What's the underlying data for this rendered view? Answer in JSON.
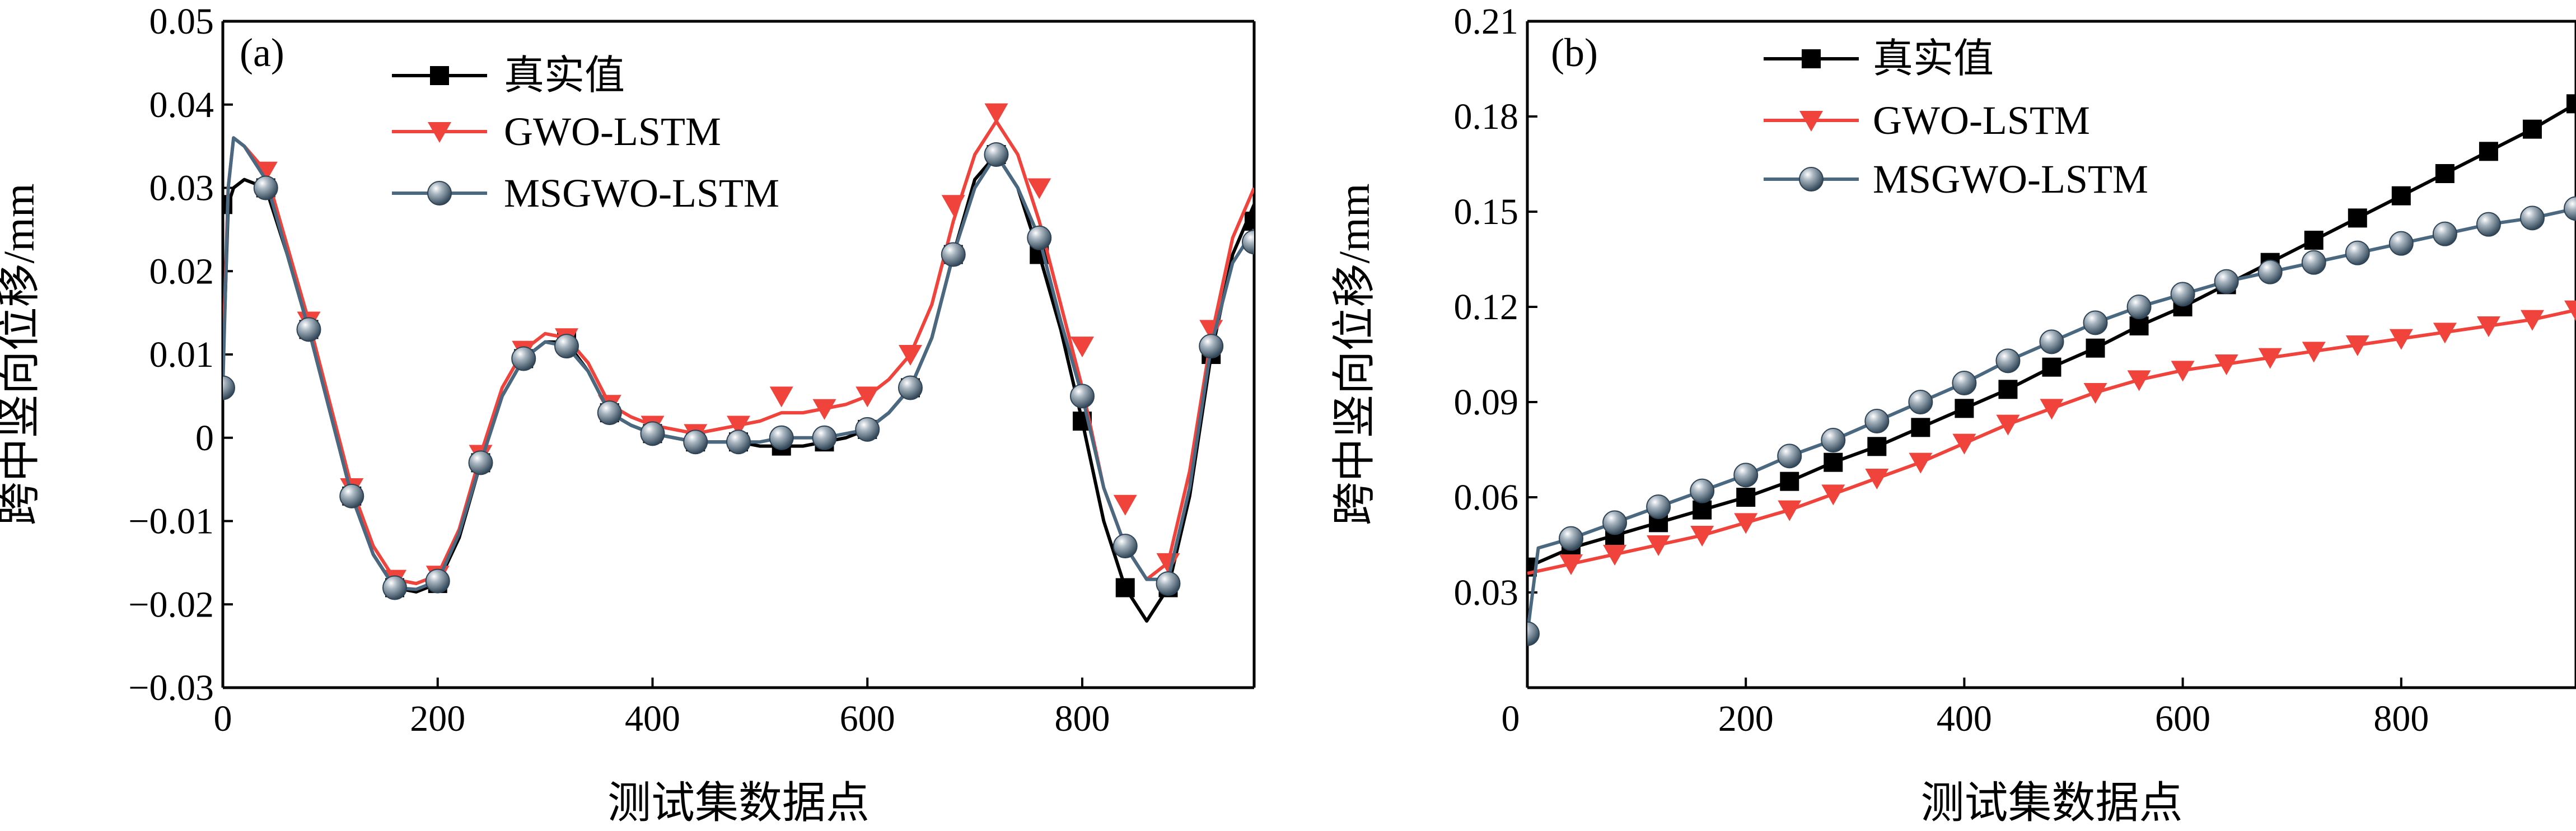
{
  "chart_data": [
    {
      "type": "line",
      "panel_label": "(a)",
      "xlabel": "测试集数据点",
      "ylabel": "跨中竖向位移/mm",
      "xlim": [
        0,
        960
      ],
      "ylim": [
        -0.03,
        0.05
      ],
      "xticks": [
        0,
        200,
        400,
        600,
        800
      ],
      "xtick_labels": [
        "0",
        "200",
        "400",
        "600",
        "800"
      ],
      "yticks": [
        -0.03,
        -0.02,
        -0.01,
        0,
        0.01,
        0.02,
        0.03,
        0.04,
        0.05
      ],
      "ytick_labels": [
        "−0.03",
        "−0.02",
        "−0.01",
        "0",
        "0.01",
        "0.02",
        "0.03",
        "0.04",
        "0.05"
      ],
      "legend_position": "top-center",
      "series": [
        {
          "name": "真实值",
          "color": "#000000",
          "marker": "square",
          "x": [
            0,
            5,
            10,
            20,
            40,
            60,
            80,
            100,
            120,
            140,
            160,
            180,
            200,
            220,
            240,
            260,
            280,
            300,
            320,
            340,
            360,
            380,
            400,
            420,
            440,
            460,
            480,
            500,
            520,
            540,
            560,
            580,
            600,
            620,
            640,
            660,
            680,
            700,
            720,
            740,
            760,
            780,
            800,
            820,
            840,
            860,
            880,
            900,
            920,
            940,
            960
          ],
          "y": [
            0.008,
            0.028,
            0.03,
            0.031,
            0.03,
            0.022,
            0.013,
            0.003,
            -0.007,
            -0.014,
            -0.018,
            -0.0185,
            -0.0175,
            -0.012,
            -0.003,
            0.005,
            0.0095,
            0.0115,
            0.0115,
            0.008,
            0.003,
            0.0015,
            0.0005,
            0.0,
            -0.0005,
            -0.0005,
            -0.0005,
            -0.001,
            -0.001,
            -0.001,
            -0.0005,
            0.0,
            0.001,
            0.003,
            0.006,
            0.012,
            0.022,
            0.031,
            0.034,
            0.03,
            0.022,
            0.013,
            0.002,
            -0.01,
            -0.018,
            -0.022,
            -0.018,
            -0.007,
            0.01,
            0.022,
            0.028
          ],
          "marker_x": [
            0,
            40,
            80,
            120,
            160,
            200,
            240,
            280,
            320,
            360,
            400,
            440,
            480,
            520,
            560,
            600,
            640,
            680,
            720,
            760,
            800,
            840,
            880,
            920,
            960
          ],
          "marker_y": [
            0.028,
            0.03,
            0.013,
            -0.007,
            -0.018,
            -0.0175,
            -0.003,
            0.0095,
            0.0115,
            0.003,
            0.0005,
            -0.0005,
            -0.0005,
            -0.001,
            -0.0005,
            0.001,
            0.006,
            0.022,
            0.034,
            0.022,
            0.002,
            -0.018,
            -0.018,
            0.01,
            0.026
          ]
        },
        {
          "name": "GWO-LSTM",
          "color": "#f0433c",
          "marker": "triangle-down",
          "x": [
            0,
            5,
            10,
            20,
            40,
            60,
            80,
            100,
            120,
            140,
            160,
            180,
            200,
            220,
            240,
            260,
            280,
            300,
            320,
            340,
            360,
            380,
            400,
            420,
            440,
            460,
            480,
            500,
            520,
            540,
            560,
            580,
            600,
            620,
            640,
            660,
            680,
            700,
            720,
            740,
            760,
            780,
            800,
            820,
            840,
            860,
            880,
            900,
            920,
            940,
            960
          ],
          "y": [
            0.009,
            0.03,
            0.036,
            0.035,
            0.032,
            0.023,
            0.014,
            0.004,
            -0.006,
            -0.013,
            -0.017,
            -0.0175,
            -0.0165,
            -0.011,
            -0.002,
            0.006,
            0.0105,
            0.0125,
            0.012,
            0.009,
            0.004,
            0.0025,
            0.0015,
            0.001,
            0.0005,
            0.001,
            0.0015,
            0.002,
            0.003,
            0.003,
            0.0035,
            0.004,
            0.005,
            0.007,
            0.01,
            0.016,
            0.026,
            0.034,
            0.038,
            0.034,
            0.026,
            0.016,
            0.006,
            -0.006,
            -0.013,
            -0.017,
            -0.015,
            -0.004,
            0.012,
            0.024,
            0.03
          ],
          "marker_x": [
            40,
            80,
            120,
            160,
            200,
            240,
            280,
            320,
            360,
            400,
            440,
            480,
            520,
            560,
            600,
            640,
            680,
            720,
            760,
            800,
            840,
            880,
            920
          ],
          "marker_y": [
            0.032,
            0.014,
            -0.006,
            -0.017,
            -0.0165,
            -0.002,
            0.0105,
            0.012,
            0.004,
            0.0015,
            0.0005,
            0.0015,
            0.005,
            0.0035,
            0.005,
            0.01,
            0.028,
            0.039,
            0.03,
            0.011,
            -0.008,
            -0.015,
            0.013
          ]
        },
        {
          "name": "MSGWO-LSTM",
          "color": "#4a6880",
          "marker": "sphere",
          "x": [
            0,
            5,
            10,
            20,
            40,
            60,
            80,
            100,
            120,
            140,
            160,
            180,
            200,
            220,
            240,
            260,
            280,
            300,
            320,
            340,
            360,
            380,
            400,
            420,
            440,
            460,
            480,
            500,
            520,
            540,
            560,
            580,
            600,
            620,
            640,
            660,
            680,
            700,
            720,
            740,
            760,
            780,
            800,
            820,
            840,
            860,
            880,
            900,
            920,
            940,
            960
          ],
          "y": [
            0.006,
            0.03,
            0.036,
            0.035,
            0.031,
            0.022,
            0.013,
            0.003,
            -0.007,
            -0.014,
            -0.018,
            -0.0182,
            -0.0172,
            -0.0115,
            -0.003,
            0.005,
            0.0095,
            0.0115,
            0.011,
            0.008,
            0.003,
            0.0015,
            0.0005,
            0.0,
            -0.0005,
            -0.0005,
            -0.0005,
            -0.0005,
            0.0,
            0.0,
            0.0,
            0.0005,
            0.001,
            0.003,
            0.006,
            0.012,
            0.022,
            0.03,
            0.034,
            0.03,
            0.024,
            0.014,
            0.005,
            -0.006,
            -0.013,
            -0.017,
            -0.017,
            -0.006,
            0.011,
            0.021,
            0.025
          ],
          "marker_x": [
            0,
            40,
            80,
            120,
            160,
            200,
            240,
            280,
            320,
            360,
            400,
            440,
            480,
            520,
            560,
            600,
            640,
            680,
            720,
            760,
            800,
            840,
            880,
            920,
            960
          ],
          "marker_y": [
            0.006,
            0.03,
            0.013,
            -0.007,
            -0.018,
            -0.0172,
            -0.003,
            0.0095,
            0.011,
            0.003,
            0.0005,
            -0.0005,
            -0.0005,
            0.0,
            0.0,
            0.001,
            0.006,
            0.022,
            0.034,
            0.024,
            0.005,
            -0.013,
            -0.0175,
            0.011,
            0.0235
          ]
        }
      ]
    },
    {
      "type": "line",
      "panel_label": "(b)",
      "xlabel": "测试集数据点",
      "ylabel": "跨中竖向位移/mm",
      "xlim": [
        0,
        960
      ],
      "ylim": [
        0,
        0.21
      ],
      "xticks": [
        200,
        400,
        600,
        800
      ],
      "xtick_labels": [
        "200",
        "400",
        "600",
        "800"
      ],
      "yticks": [
        0.03,
        0.06,
        0.09,
        0.12,
        0.15,
        0.18,
        0.21
      ],
      "ytick_labels": [
        "0.03",
        "0.06",
        "0.09",
        "0.12",
        "0.15",
        "0.18",
        "0.21"
      ],
      "origin_label": "0",
      "legend_position": "top-center",
      "series": [
        {
          "name": "真实值",
          "color": "#000000",
          "marker": "square",
          "x": [
            0,
            40,
            80,
            120,
            160,
            200,
            240,
            280,
            320,
            360,
            400,
            440,
            480,
            520,
            560,
            600,
            640,
            680,
            720,
            760,
            800,
            840,
            880,
            920,
            960
          ],
          "y": [
            0.038,
            0.044,
            0.048,
            0.052,
            0.056,
            0.06,
            0.065,
            0.071,
            0.076,
            0.082,
            0.088,
            0.094,
            0.101,
            0.107,
            0.114,
            0.12,
            0.127,
            0.134,
            0.141,
            0.148,
            0.155,
            0.162,
            0.169,
            0.176,
            0.184
          ],
          "marker_x": [
            0,
            40,
            80,
            120,
            160,
            200,
            240,
            280,
            320,
            360,
            400,
            440,
            480,
            520,
            560,
            600,
            640,
            680,
            720,
            760,
            800,
            840,
            880,
            920,
            960
          ],
          "marker_y": [
            0.038,
            0.044,
            0.048,
            0.052,
            0.056,
            0.06,
            0.065,
            0.071,
            0.076,
            0.082,
            0.088,
            0.094,
            0.101,
            0.107,
            0.114,
            0.12,
            0.127,
            0.134,
            0.141,
            0.148,
            0.155,
            0.162,
            0.169,
            0.176,
            0.184
          ]
        },
        {
          "name": "GWO-LSTM",
          "color": "#f0433c",
          "marker": "triangle-down",
          "x": [
            0,
            40,
            80,
            120,
            160,
            200,
            240,
            280,
            320,
            360,
            400,
            440,
            480,
            520,
            560,
            600,
            640,
            680,
            720,
            760,
            800,
            840,
            880,
            920,
            960
          ],
          "y": [
            0.036,
            0.039,
            0.042,
            0.045,
            0.048,
            0.052,
            0.056,
            0.061,
            0.066,
            0.071,
            0.077,
            0.083,
            0.088,
            0.093,
            0.097,
            0.1,
            0.102,
            0.104,
            0.106,
            0.108,
            0.11,
            0.112,
            0.114,
            0.116,
            0.119
          ],
          "marker_x": [
            40,
            80,
            120,
            160,
            200,
            240,
            280,
            320,
            360,
            400,
            440,
            480,
            520,
            560,
            600,
            640,
            680,
            720,
            760,
            800,
            840,
            880,
            920,
            960
          ],
          "marker_y": [
            0.039,
            0.042,
            0.045,
            0.048,
            0.052,
            0.056,
            0.061,
            0.066,
            0.071,
            0.077,
            0.083,
            0.088,
            0.093,
            0.097,
            0.1,
            0.102,
            0.104,
            0.106,
            0.108,
            0.11,
            0.112,
            0.114,
            0.116,
            0.119
          ]
        },
        {
          "name": "MSGWO-LSTM",
          "color": "#4a6880",
          "marker": "sphere",
          "x": [
            0,
            10,
            40,
            80,
            120,
            160,
            200,
            240,
            280,
            320,
            360,
            400,
            440,
            480,
            520,
            560,
            600,
            640,
            680,
            720,
            760,
            800,
            840,
            880,
            920,
            960
          ],
          "y": [
            0.017,
            0.044,
            0.047,
            0.052,
            0.057,
            0.062,
            0.067,
            0.073,
            0.078,
            0.084,
            0.09,
            0.096,
            0.103,
            0.109,
            0.115,
            0.12,
            0.124,
            0.128,
            0.131,
            0.134,
            0.137,
            0.14,
            0.143,
            0.146,
            0.148,
            0.151
          ],
          "marker_x": [
            0,
            40,
            80,
            120,
            160,
            200,
            240,
            280,
            320,
            360,
            400,
            440,
            480,
            520,
            560,
            600,
            640,
            680,
            720,
            760,
            800,
            840,
            880,
            920,
            960
          ],
          "marker_y": [
            0.017,
            0.047,
            0.052,
            0.057,
            0.062,
            0.067,
            0.073,
            0.078,
            0.084,
            0.09,
            0.096,
            0.103,
            0.109,
            0.115,
            0.12,
            0.124,
            0.128,
            0.131,
            0.134,
            0.137,
            0.14,
            0.143,
            0.146,
            0.148,
            0.151
          ]
        }
      ]
    }
  ]
}
